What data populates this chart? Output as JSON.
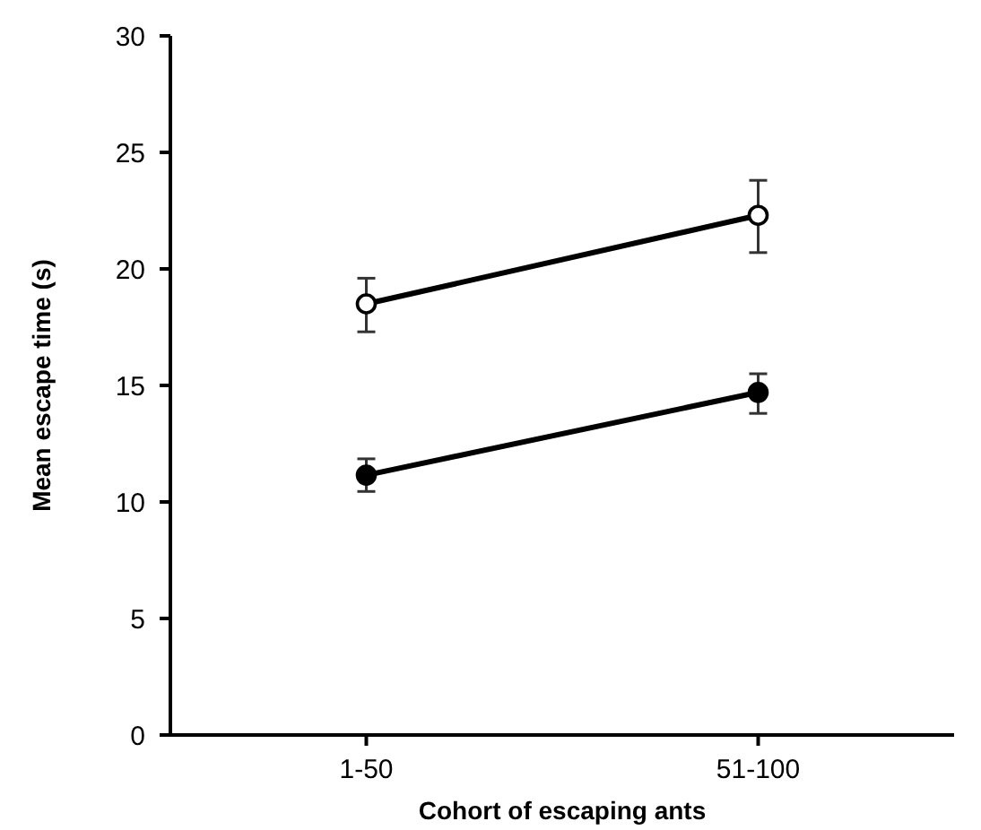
{
  "chart_data": {
    "type": "line",
    "xlabel": "Cohort of escaping ants",
    "ylabel": "Mean escape time (s)",
    "categories": [
      "1-50",
      "51-100"
    ],
    "series": [
      {
        "color": "#000000",
        "values": [
          18.5,
          22.3
        ],
        "errors": [
          [
            17.3,
            19.6
          ],
          [
            20.7,
            23.8
          ]
        ]
      },
      {
        "color": "#000000",
        "values": [
          11.15,
          14.7
        ],
        "errors": [
          [
            10.45,
            11.85
          ],
          [
            13.8,
            15.5
          ]
        ]
      }
    ],
    "ylim": [
      0,
      30
    ],
    "yticks": [
      0,
      5,
      10,
      15,
      20,
      25,
      30
    ],
    "marker": "circle",
    "line_style": "solid",
    "grid": false
  }
}
